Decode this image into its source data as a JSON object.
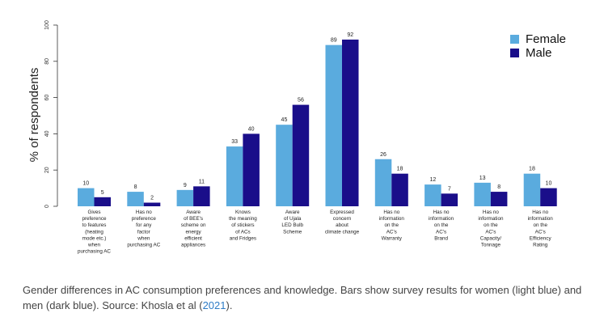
{
  "chart_data": {
    "type": "bar",
    "categories": [
      [
        "Gives",
        "preference",
        "to features",
        "(heating",
        "mode etc.)",
        "when",
        "purchasing AC"
      ],
      [
        "Has no",
        "preference",
        "for any",
        "factor",
        "when",
        "purchasing AC"
      ],
      [
        "Aware",
        "of BEE's",
        "scheme on",
        "energy",
        "efficient",
        "appliances"
      ],
      [
        "Knows",
        "the meaning",
        "of stickers",
        "of ACs",
        "and Fridges"
      ],
      [
        "Aware",
        "of Ujala",
        "LED Bulb",
        "Scheme"
      ],
      [
        "Expressed",
        "concern",
        "about",
        "climate change"
      ],
      [
        "Has no",
        "information",
        "on the",
        "AC's",
        "Warranty"
      ],
      [
        "Has no",
        "information",
        "on the",
        "AC's",
        "Brand"
      ],
      [
        "Has no",
        "information",
        "on the",
        "AC's",
        "Capacity/",
        "Tonnage"
      ],
      [
        "Has no",
        "information",
        "on the",
        "AC's",
        "Efficiency",
        "Rating"
      ]
    ],
    "series": [
      {
        "name": "Female",
        "values": [
          10,
          8,
          9,
          33,
          45,
          89,
          26,
          12,
          13,
          18
        ],
        "color": "#5aabde"
      },
      {
        "name": "Male",
        "values": [
          5,
          2,
          11,
          40,
          56,
          92,
          18,
          7,
          8,
          10
        ],
        "color": "#1a0e8a"
      }
    ],
    "ylabel": "% of respondents",
    "yticks": [
      "0",
      "20",
      "40",
      "60",
      "80",
      "100"
    ],
    "ylim": [
      0,
      100
    ],
    "grid": false,
    "legend_position": "top-right"
  },
  "caption": {
    "text_before": "Gender differences in AC consumption preferences and knowledge. Bars show survey results for women (light blue) and men (dark blue). Source: Khosla et al (",
    "link": "2021",
    "text_after": ")."
  }
}
